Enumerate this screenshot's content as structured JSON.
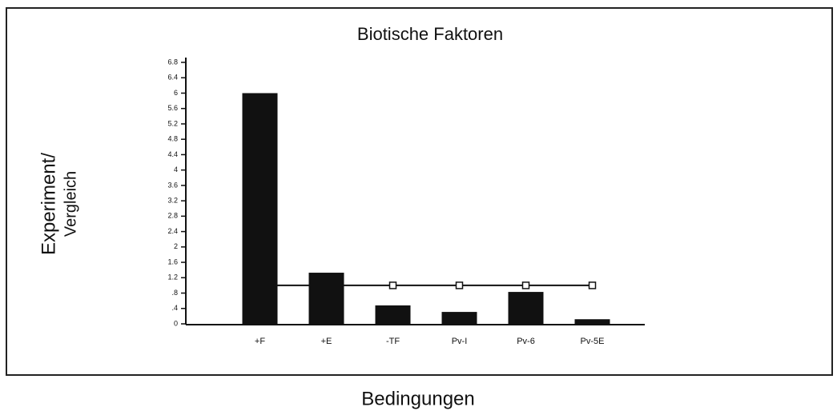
{
  "chart_data": {
    "type": "bar",
    "title": "Biotische Faktoren",
    "y_label": [
      "Experiment/",
      "Vergleich"
    ],
    "x_label": "Bedingungen",
    "categories": [
      "+F",
      "+E",
      "-TF",
      "Pv-I",
      "Pv-6",
      "Pv-5E"
    ],
    "series": [
      {
        "type": "bar",
        "color": "#111111",
        "values": [
          6.0,
          1.33,
          0.48,
          0.31,
          0.83,
          0.12
        ]
      },
      {
        "type": "line",
        "color": "#111111",
        "marker": "square",
        "values": [
          1.0,
          1.0,
          1.0,
          1.0,
          1.0,
          1.0
        ]
      }
    ],
    "ylim": [
      0,
      6.8
    ],
    "yticks": [
      0,
      {
        "value": 0.4,
        "label": ".4"
      },
      {
        "value": 0.8,
        "label": ".8"
      },
      1.2,
      1.6,
      2,
      2.4,
      2.8,
      3.2,
      3.6,
      4,
      4.4,
      4.8,
      5.2,
      5.6,
      6,
      6.4,
      6.8
    ],
    "grid": false
  }
}
